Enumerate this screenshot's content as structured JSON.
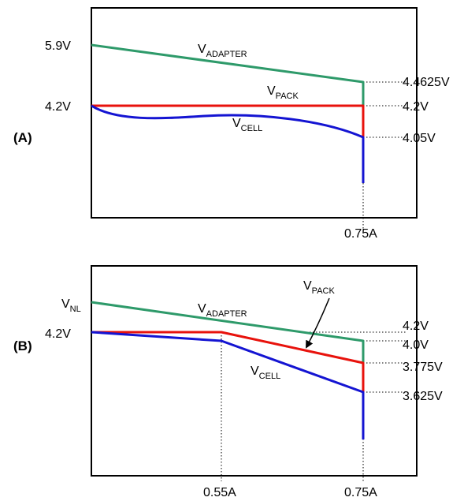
{
  "colors": {
    "adapter": "#2e9a6a",
    "pack": "#e8120c",
    "cell": "#1414d2"
  },
  "panel_a": {
    "tag": "(A)",
    "left_labels": {
      "top": "5.9V",
      "mid": "4.2V"
    },
    "right_labels": {
      "adapter_end": "4.4625V",
      "pack_end": "4.2V",
      "cell_end": "4.05V"
    },
    "x_labels": {
      "end": "0.75A"
    },
    "curves": {
      "adapter": {
        "main": "V",
        "sub": "ADAPTER"
      },
      "pack": {
        "main": "V",
        "sub": "PACK"
      },
      "cell": {
        "main": "V",
        "sub": "CELL"
      }
    }
  },
  "panel_b": {
    "tag": "(B)",
    "left_labels": {
      "nl_main": "V",
      "nl_sub": "NL",
      "mid": "4.2V"
    },
    "right_labels": {
      "top": "4.2V",
      "adapter_end": "4.0V",
      "pack_end": "3.775V",
      "cell_end": "3.625V"
    },
    "x_labels": {
      "knee": "0.55A",
      "end": "0.75A"
    },
    "curves": {
      "adapter": {
        "main": "V",
        "sub": "ADAPTER"
      },
      "pack": {
        "main": "V",
        "sub": "PACK"
      },
      "cell": {
        "main": "V",
        "sub": "CELL"
      }
    }
  }
}
